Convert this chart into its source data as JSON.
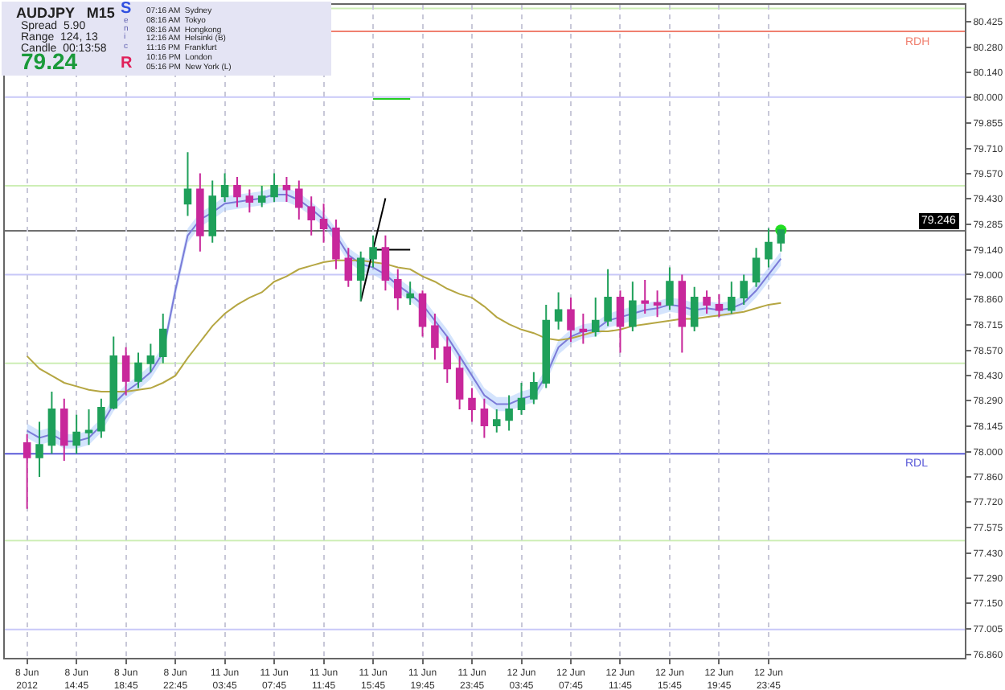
{
  "chart_data": {
    "type": "candlestick",
    "categories": [
      "8 Jun 2012",
      null,
      null,
      null,
      "8 Jun 14:45",
      null,
      null,
      null,
      "8 Jun 18:45",
      null,
      null,
      null,
      "8 Jun 22:45",
      null,
      null,
      null,
      "11 Jun 03:45",
      null,
      null,
      null,
      "11 Jun 07:45",
      null,
      null,
      null,
      "11 Jun 11:45",
      null,
      null,
      null,
      "11 Jun 15:45",
      null,
      null,
      null,
      "11 Jun 19:45",
      null,
      null,
      null,
      "11 Jun 23:45",
      null,
      null,
      null,
      "12 Jun 03:45",
      null,
      null,
      null,
      "12 Jun 07:45",
      null,
      null,
      null,
      "12 Jun 11:45",
      null,
      null,
      null,
      "12 Jun 15:45",
      null,
      null,
      null,
      "12 Jun 19:45",
      null,
      null,
      null,
      "12 Jun 23:45",
      null
    ],
    "ohlc": [
      [
        78.05,
        78.1,
        77.68,
        77.97
      ],
      [
        77.97,
        78.17,
        77.86,
        78.04
      ],
      [
        78.04,
        78.34,
        77.99,
        78.24
      ],
      [
        78.24,
        78.3,
        77.95,
        78.04
      ],
      [
        78.04,
        78.21,
        77.99,
        78.11
      ],
      [
        78.11,
        78.24,
        78.04,
        78.12
      ],
      [
        78.12,
        78.3,
        78.08,
        78.25
      ],
      [
        78.25,
        78.65,
        78.24,
        78.54
      ],
      [
        78.54,
        78.59,
        78.32,
        78.4
      ],
      [
        78.4,
        78.56,
        78.36,
        78.5
      ],
      [
        78.5,
        78.61,
        78.45,
        78.54
      ],
      [
        78.54,
        78.78,
        78.5,
        78.69
      ],
      null,
      [
        79.4,
        79.69,
        79.33,
        79.48
      ],
      [
        79.48,
        79.57,
        79.13,
        79.22
      ],
      [
        79.22,
        79.53,
        79.18,
        79.44
      ],
      [
        79.44,
        79.57,
        79.41,
        79.5
      ],
      [
        79.5,
        79.55,
        79.38,
        79.44
      ],
      [
        79.44,
        79.48,
        79.35,
        79.41
      ],
      [
        79.41,
        79.5,
        79.38,
        79.44
      ],
      [
        79.44,
        79.57,
        79.41,
        79.5
      ],
      [
        79.5,
        79.55,
        79.41,
        79.48
      ],
      [
        79.48,
        79.53,
        79.31,
        79.38
      ],
      [
        79.38,
        79.44,
        79.22,
        79.31
      ],
      [
        79.31,
        79.4,
        79.18,
        79.26
      ],
      [
        79.26,
        79.31,
        79.03,
        79.09
      ],
      [
        79.09,
        79.15,
        78.93,
        78.97
      ],
      [
        78.97,
        79.13,
        78.85,
        79.09
      ],
      [
        79.09,
        79.22,
        79.04,
        79.15
      ],
      [
        79.15,
        79.22,
        78.91,
        78.97
      ],
      [
        78.97,
        79.03,
        78.8,
        78.87
      ],
      [
        78.87,
        78.96,
        78.83,
        78.89
      ],
      [
        78.89,
        78.91,
        78.65,
        78.71
      ],
      [
        78.71,
        78.78,
        78.52,
        78.59
      ],
      [
        78.59,
        78.65,
        78.39,
        78.47
      ],
      [
        78.47,
        78.54,
        78.24,
        78.3
      ],
      [
        78.3,
        78.36,
        78.17,
        78.24
      ],
      [
        78.24,
        78.3,
        78.08,
        78.15
      ],
      [
        78.15,
        78.24,
        78.11,
        78.18
      ],
      [
        78.18,
        78.32,
        78.12,
        78.24
      ],
      [
        78.24,
        78.39,
        78.21,
        78.3
      ],
      [
        78.3,
        78.45,
        78.27,
        78.39
      ],
      [
        78.39,
        78.83,
        78.36,
        78.74
      ],
      [
        78.74,
        78.9,
        78.69,
        78.8
      ],
      [
        78.8,
        78.87,
        78.62,
        78.69
      ],
      [
        78.69,
        78.78,
        78.61,
        78.68
      ],
      [
        78.68,
        78.87,
        78.65,
        78.74
      ],
      [
        78.74,
        79.03,
        78.71,
        78.87
      ],
      [
        78.87,
        78.91,
        78.56,
        78.71
      ],
      [
        78.71,
        78.96,
        78.68,
        78.85
      ],
      [
        78.85,
        78.97,
        78.78,
        78.84
      ],
      [
        78.84,
        78.91,
        78.76,
        78.83
      ],
      [
        78.83,
        79.04,
        78.8,
        78.96
      ],
      [
        78.96,
        79.0,
        78.56,
        78.71
      ],
      [
        78.71,
        78.93,
        78.68,
        78.87
      ],
      [
        78.87,
        78.91,
        78.78,
        78.83
      ],
      [
        78.83,
        78.89,
        78.76,
        78.8
      ],
      [
        78.8,
        78.96,
        78.78,
        78.87
      ],
      [
        78.87,
        79.0,
        78.83,
        78.96
      ],
      [
        78.96,
        79.15,
        78.93,
        79.09
      ],
      [
        79.09,
        79.26,
        79.04,
        79.18
      ],
      [
        79.18,
        79.25,
        79.13,
        79.25
      ]
    ],
    "series": [
      {
        "type": "line",
        "color": "#7b7bd8",
        "values": [
          78.12,
          78.08,
          78.1,
          78.06,
          78.06,
          78.08,
          78.15,
          78.27,
          78.34,
          78.39,
          78.45,
          78.56,
          78.91,
          79.22,
          79.31,
          79.35,
          79.4,
          79.41,
          79.42,
          79.43,
          79.45,
          79.45,
          79.42,
          79.37,
          79.31,
          79.22,
          79.11,
          79.06,
          79.04,
          79.0,
          78.94,
          78.89,
          78.83,
          78.74,
          78.65,
          78.54,
          78.43,
          78.32,
          78.27,
          78.27,
          78.3,
          78.32,
          78.43,
          78.59,
          78.65,
          78.68,
          78.69,
          78.74,
          78.76,
          78.78,
          78.8,
          78.81,
          78.83,
          78.82,
          78.8,
          78.81,
          78.8,
          78.81,
          78.84,
          78.91,
          79.0,
          79.09
        ],
        "lower": [
          78.08,
          78.04,
          78.06,
          78.02,
          78.02,
          78.04,
          78.11,
          78.23,
          78.3,
          78.35,
          78.41,
          78.52,
          78.87,
          79.18,
          79.27,
          79.31,
          79.36,
          79.37,
          79.38,
          79.39,
          79.41,
          79.41,
          79.38,
          79.33,
          79.27,
          79.18,
          79.07,
          79.02,
          79.0,
          78.96,
          78.9,
          78.85,
          78.79,
          78.7,
          78.61,
          78.5,
          78.39,
          78.28,
          78.23,
          78.23,
          78.26,
          78.28,
          78.39,
          78.55,
          78.61,
          78.64,
          78.65,
          78.7,
          78.72,
          78.74,
          78.76,
          78.77,
          78.79,
          78.78,
          78.76,
          78.77,
          78.76,
          78.77,
          78.8,
          78.87,
          78.96,
          79.05
        ],
        "upper": [
          78.16,
          78.12,
          78.14,
          78.1,
          78.1,
          78.12,
          78.19,
          78.31,
          78.38,
          78.43,
          78.49,
          78.6,
          78.95,
          79.26,
          79.35,
          79.39,
          79.44,
          79.45,
          79.46,
          79.47,
          79.49,
          79.49,
          79.46,
          79.41,
          79.35,
          79.26,
          79.15,
          79.1,
          79.08,
          79.04,
          78.98,
          78.93,
          78.87,
          78.78,
          78.69,
          78.58,
          78.47,
          78.36,
          78.31,
          78.31,
          78.34,
          78.36,
          78.47,
          78.63,
          78.69,
          78.72,
          78.73,
          78.78,
          78.8,
          78.82,
          78.84,
          78.85,
          78.87,
          78.86,
          78.84,
          78.85,
          78.84,
          78.85,
          78.88,
          78.95,
          79.04,
          79.13
        ]
      },
      {
        "type": "line",
        "color": "#b5a642",
        "values": [
          78.54,
          78.47,
          78.43,
          78.39,
          78.37,
          78.35,
          78.34,
          78.34,
          78.34,
          78.35,
          78.36,
          78.39,
          78.43,
          78.53,
          78.62,
          78.71,
          78.78,
          78.83,
          78.87,
          78.9,
          78.96,
          78.99,
          79.03,
          79.05,
          79.07,
          79.08,
          79.08,
          79.08,
          79.07,
          79.06,
          79.04,
          79.03,
          78.99,
          78.96,
          78.92,
          78.89,
          78.87,
          78.82,
          78.76,
          78.72,
          78.69,
          78.67,
          78.64,
          78.63,
          78.64,
          78.66,
          78.68,
          78.68,
          78.69,
          78.71,
          78.72,
          78.73,
          78.74,
          78.75,
          78.75,
          78.76,
          78.77,
          78.78,
          78.79,
          78.81,
          78.83,
          78.84
        ]
      },
      {
        "type": "line",
        "color": "#000000",
        "values": [
          null,
          null,
          null,
          null,
          null,
          null,
          null,
          null,
          null,
          null,
          null,
          null,
          null,
          null,
          null,
          null,
          null,
          null,
          null,
          null,
          null,
          null,
          null,
          null,
          null,
          null,
          null,
          78.85,
          null,
          79.43,
          null,
          null,
          null,
          null,
          null,
          null,
          null,
          null,
          null,
          null,
          null,
          null,
          null,
          null,
          null,
          null,
          null,
          null,
          null,
          null,
          null,
          null,
          null,
          null,
          null,
          null,
          null,
          null,
          null,
          null,
          null,
          null
        ]
      },
      {
        "type": "line",
        "color": "#000000",
        "values": [
          null,
          null,
          null,
          null,
          null,
          null,
          null,
          null,
          null,
          null,
          null,
          null,
          null,
          null,
          null,
          null,
          null,
          null,
          null,
          null,
          null,
          null,
          null,
          null,
          null,
          null,
          null,
          null,
          79.14,
          null,
          null,
          79.14,
          null,
          null,
          null,
          null,
          null,
          null,
          null,
          null,
          null,
          null,
          null,
          null,
          null,
          null,
          null,
          null,
          null,
          null,
          null,
          null,
          null,
          null,
          null,
          null,
          null,
          null,
          null,
          null,
          null,
          null
        ]
      },
      {
        "type": "line",
        "color": "#22cc22",
        "values": [
          null,
          null,
          null,
          null,
          null,
          null,
          null,
          null,
          null,
          null,
          null,
          null,
          null,
          null,
          null,
          null,
          null,
          null,
          null,
          null,
          null,
          null,
          null,
          null,
          null,
          null,
          null,
          null,
          79.99,
          null,
          null,
          79.99,
          null,
          null,
          null,
          null,
          null,
          null,
          null,
          null,
          null,
          null,
          null,
          null,
          null,
          null,
          null,
          null,
          null,
          null,
          null,
          null,
          null,
          null,
          null,
          null,
          null,
          null,
          null,
          null,
          null,
          null
        ]
      },
      {
        "type": "scatter",
        "color": "#22dd22",
        "values": [
          null,
          null,
          null,
          null,
          null,
          null,
          null,
          null,
          null,
          null,
          null,
          null,
          null,
          null,
          null,
          null,
          null,
          null,
          null,
          null,
          null,
          null,
          null,
          null,
          null,
          null,
          null,
          null,
          null,
          null,
          null,
          null,
          null,
          null,
          null,
          null,
          null,
          null,
          null,
          null,
          null,
          null,
          null,
          null,
          null,
          null,
          null,
          null,
          null,
          null,
          null,
          null,
          null,
          null,
          null,
          null,
          null,
          null,
          null,
          null,
          null,
          79.25
        ]
      }
    ],
    "ylim": [
      76.84,
      80.52
    ],
    "yticks": [
      80.425,
      {
        "value": 80.28,
        "label": "80.280"
      },
      {
        "value": 80.14,
        "label": "80.140"
      },
      {
        "value": 80,
        "label": "80.000"
      },
      79.855,
      {
        "value": 79.71,
        "label": "79.710"
      },
      {
        "value": 79.57,
        "label": "79.570"
      },
      {
        "value": 79.43,
        "label": "79.430"
      },
      79.285,
      {
        "value": 79.14,
        "label": "79.140"
      },
      {
        "value": 79,
        "label": "79.000"
      },
      {
        "value": 78.86,
        "label": "78.860"
      },
      78.715,
      {
        "value": 78.57,
        "label": "78.570"
      },
      {
        "value": 78.43,
        "label": "78.430"
      },
      {
        "value": 78.29,
        "label": "78.290"
      },
      78.145,
      {
        "value": 78,
        "label": "78.000"
      },
      {
        "value": 77.86,
        "label": "77.860"
      },
      {
        "value": 77.72,
        "label": "77.720"
      },
      77.575,
      {
        "value": 77.43,
        "label": "77.430"
      },
      {
        "value": 77.29,
        "label": "77.290"
      },
      {
        "value": 77.15,
        "label": "77.150"
      },
      77.005,
      {
        "value": 76.86,
        "label": "76.860"
      }
    ],
    "grid": "x",
    "ref_lines": [
      {
        "axis": "y",
        "value": 80.5,
        "color": "#cdeeb5"
      },
      {
        "axis": "y",
        "value": 79.5,
        "color": "#cdeeb5"
      },
      {
        "axis": "y",
        "value": 78.5,
        "color": "#cdeeb5"
      },
      {
        "axis": "y",
        "value": 77.5,
        "color": "#cdeeb5"
      },
      {
        "axis": "y",
        "value": 80,
        "color": "#c8c8f8"
      },
      {
        "axis": "y",
        "value": 79,
        "color": "#c8c8f8"
      },
      {
        "axis": "y",
        "value": 77,
        "color": "#c8c8f8"
      },
      {
        "axis": "y",
        "value": 79.246,
        "label": "79.246",
        "color": "#707070"
      },
      {
        "axis": "y",
        "value": 80.37,
        "label": "RDH",
        "color": "#f08070"
      },
      {
        "axis": "y",
        "value": 77.99,
        "label": "RDL",
        "color": "#5a5ad8"
      }
    ],
    "annotations": [
      "AUDJPY   M15",
      "Spread  5.90",
      "Range  124, 13",
      "Candle  00:13:58",
      "79.24",
      "S",
      "e",
      "n",
      "i",
      "c",
      "R",
      "07:16 AM  Sydney",
      "08:16 AM  Tokyo",
      "08:16 AM  Hongkong",
      "12:16 AM  Helsinki (B)",
      "11:16 PM  Frankfurt",
      "10:16 PM  London",
      "05:16 PM  New York (L)"
    ]
  }
}
